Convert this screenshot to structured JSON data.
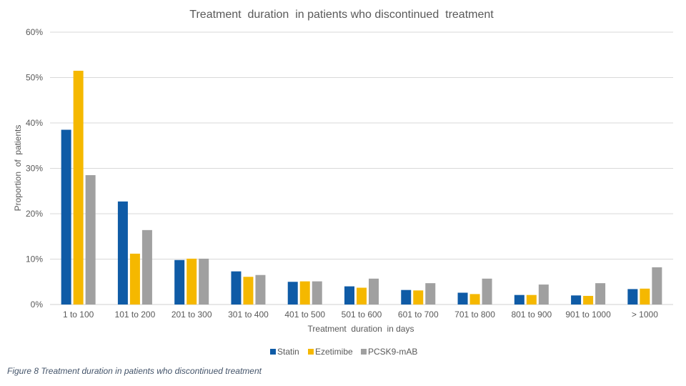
{
  "chart_data": {
    "type": "bar",
    "title": "Treatment  duration  in patients who discontinued  treatment",
    "xlabel": "Treatment  duration  in days",
    "ylabel": "Proportion  of  patients",
    "ylim": [
      0,
      60
    ],
    "yticks": [
      0,
      10,
      20,
      30,
      40,
      50,
      60
    ],
    "ytick_labels": [
      "0%",
      "10%",
      "20%",
      "30%",
      "40%",
      "50%",
      "60%"
    ],
    "grid": true,
    "legend_position": "bottom",
    "categories": [
      "1 to 100",
      "101 to 200",
      "201 to 300",
      "301 to 400",
      "401 to 500",
      "501 to 600",
      "601 to 700",
      "701 to 800",
      "801 to 900",
      "901 to 1000",
      "> 1000"
    ],
    "series": [
      {
        "name": "Statin",
        "color": "#0f5ba6",
        "values": [
          38.5,
          22.7,
          9.8,
          7.3,
          5.0,
          4.0,
          3.2,
          2.6,
          2.1,
          2.0,
          3.4
        ]
      },
      {
        "name": "Ezetimibe",
        "color": "#f5b800",
        "values": [
          51.5,
          11.2,
          10.1,
          6.1,
          5.1,
          3.7,
          3.1,
          2.3,
          2.1,
          1.9,
          3.5
        ]
      },
      {
        "name": "PCSK9-mAB",
        "color": "#a0a0a0",
        "values": [
          28.5,
          16.4,
          10.1,
          6.5,
          5.1,
          5.7,
          4.7,
          5.7,
          4.4,
          4.7,
          8.2
        ]
      }
    ]
  },
  "caption": "Figure 8 Treatment duration in patients who discontinued treatment"
}
